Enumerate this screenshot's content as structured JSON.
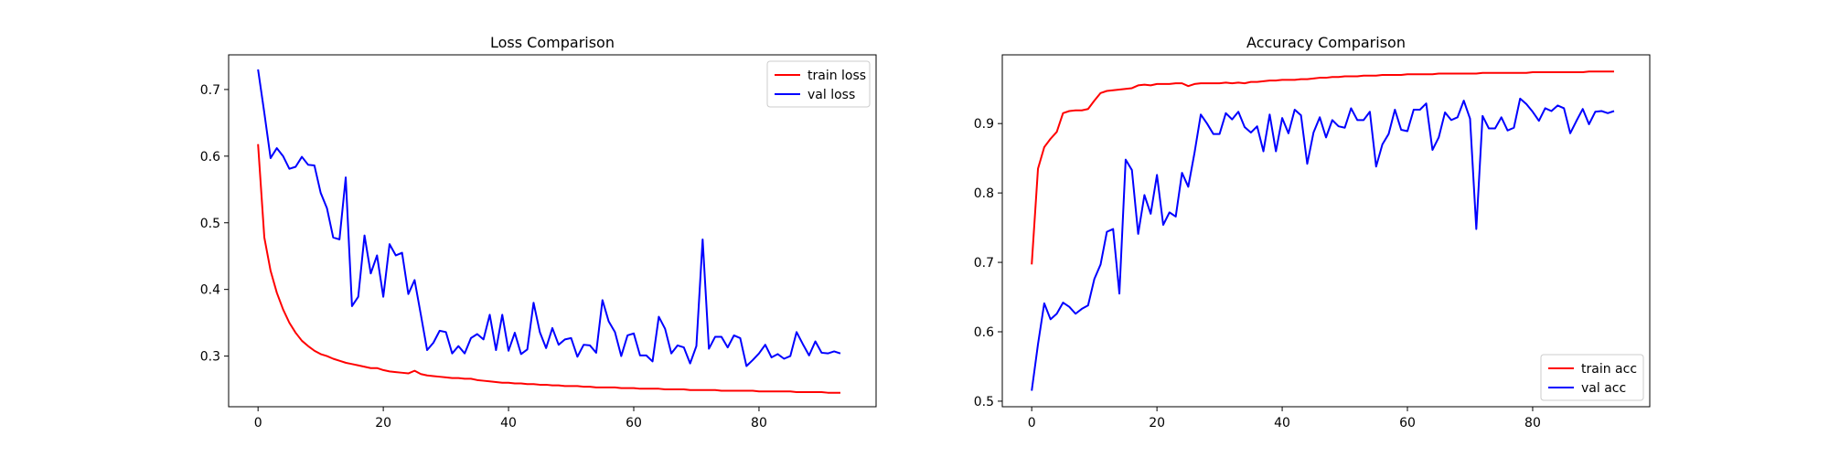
{
  "chart_data": [
    {
      "type": "line",
      "title": "Loss Comparison",
      "xlabel": "",
      "ylabel": "",
      "xlim": [
        -4.7,
        98.7
      ],
      "ylim": [
        0.224,
        0.752
      ],
      "xticks": [
        0,
        20,
        40,
        60,
        80
      ],
      "yticks": [
        0.3,
        0.4,
        0.5,
        0.6,
        0.7
      ],
      "ytick_labels": [
        "0.3",
        "0.4",
        "0.5",
        "0.6",
        "0.7"
      ],
      "legend": "top-right",
      "grid": false,
      "series": [
        {
          "name": "train loss",
          "color": "#ff0000",
          "values": [
            0.618,
            0.478,
            0.428,
            0.395,
            0.37,
            0.35,
            0.335,
            0.323,
            0.315,
            0.308,
            0.303,
            0.3,
            0.296,
            0.293,
            0.29,
            0.288,
            0.286,
            0.284,
            0.282,
            0.282,
            0.279,
            0.277,
            0.276,
            0.275,
            0.274,
            0.278,
            0.273,
            0.271,
            0.27,
            0.269,
            0.268,
            0.267,
            0.267,
            0.266,
            0.266,
            0.264,
            0.263,
            0.262,
            0.261,
            0.26,
            0.26,
            0.259,
            0.259,
            0.258,
            0.258,
            0.257,
            0.257,
            0.256,
            0.256,
            0.255,
            0.255,
            0.255,
            0.254,
            0.254,
            0.253,
            0.253,
            0.253,
            0.253,
            0.252,
            0.252,
            0.252,
            0.251,
            0.251,
            0.251,
            0.251,
            0.25,
            0.25,
            0.25,
            0.25,
            0.249,
            0.249,
            0.249,
            0.249,
            0.249,
            0.248,
            0.248,
            0.248,
            0.248,
            0.248,
            0.248,
            0.247,
            0.247,
            0.247,
            0.247,
            0.247,
            0.247,
            0.246,
            0.246,
            0.246,
            0.246,
            0.246,
            0.245,
            0.245,
            0.245
          ]
        },
        {
          "name": "val loss",
          "color": "#0000ff",
          "values": [
            0.73,
            0.665,
            0.597,
            0.612,
            0.6,
            0.581,
            0.584,
            0.599,
            0.587,
            0.586,
            0.545,
            0.522,
            0.478,
            0.475,
            0.568,
            0.375,
            0.389,
            0.481,
            0.424,
            0.451,
            0.389,
            0.468,
            0.451,
            0.455,
            0.393,
            0.414,
            0.362,
            0.309,
            0.32,
            0.338,
            0.336,
            0.304,
            0.315,
            0.304,
            0.327,
            0.333,
            0.325,
            0.362,
            0.309,
            0.362,
            0.308,
            0.335,
            0.303,
            0.31,
            0.38,
            0.336,
            0.312,
            0.342,
            0.317,
            0.325,
            0.327,
            0.299,
            0.317,
            0.316,
            0.305,
            0.384,
            0.352,
            0.336,
            0.3,
            0.331,
            0.334,
            0.301,
            0.301,
            0.292,
            0.359,
            0.341,
            0.304,
            0.316,
            0.313,
            0.289,
            0.315,
            0.475,
            0.311,
            0.329,
            0.329,
            0.313,
            0.331,
            0.327,
            0.285,
            0.294,
            0.304,
            0.317,
            0.298,
            0.303,
            0.296,
            0.3,
            0.336,
            0.318,
            0.301,
            0.322,
            0.305,
            0.304,
            0.307,
            0.304
          ]
        }
      ]
    },
    {
      "type": "line",
      "title": "Accuracy Comparison",
      "xlabel": "",
      "ylabel": "",
      "xlim": [
        -4.7,
        98.7
      ],
      "ylim": [
        0.492,
        0.999
      ],
      "xticks": [
        0,
        20,
        40,
        60,
        80
      ],
      "yticks": [
        0.5,
        0.6,
        0.7,
        0.8,
        0.9
      ],
      "ytick_labels": [
        "0.5",
        "0.6",
        "0.7",
        "0.8",
        "0.9"
      ],
      "legend": "bottom-right",
      "grid": false,
      "series": [
        {
          "name": "train acc",
          "color": "#ff0000",
          "values": [
            0.697,
            0.835,
            0.866,
            0.878,
            0.888,
            0.915,
            0.918,
            0.919,
            0.919,
            0.921,
            0.933,
            0.944,
            0.947,
            0.948,
            0.949,
            0.95,
            0.951,
            0.955,
            0.956,
            0.955,
            0.957,
            0.957,
            0.957,
            0.958,
            0.958,
            0.954,
            0.957,
            0.958,
            0.958,
            0.958,
            0.958,
            0.959,
            0.958,
            0.959,
            0.958,
            0.96,
            0.96,
            0.961,
            0.962,
            0.962,
            0.963,
            0.963,
            0.963,
            0.964,
            0.964,
            0.965,
            0.966,
            0.966,
            0.967,
            0.967,
            0.968,
            0.968,
            0.968,
            0.969,
            0.969,
            0.969,
            0.97,
            0.97,
            0.97,
            0.97,
            0.971,
            0.971,
            0.971,
            0.971,
            0.971,
            0.972,
            0.972,
            0.972,
            0.972,
            0.972,
            0.972,
            0.972,
            0.973,
            0.973,
            0.973,
            0.973,
            0.973,
            0.973,
            0.973,
            0.973,
            0.974,
            0.974,
            0.974,
            0.974,
            0.974,
            0.974,
            0.974,
            0.974,
            0.974,
            0.975,
            0.975,
            0.975,
            0.975,
            0.975
          ]
        },
        {
          "name": "val acc",
          "color": "#0000ff",
          "values": [
            0.515,
            0.582,
            0.641,
            0.618,
            0.626,
            0.642,
            0.636,
            0.626,
            0.633,
            0.638,
            0.676,
            0.697,
            0.744,
            0.748,
            0.655,
            0.848,
            0.833,
            0.741,
            0.797,
            0.77,
            0.826,
            0.754,
            0.772,
            0.766,
            0.829,
            0.809,
            0.858,
            0.913,
            0.9,
            0.885,
            0.885,
            0.915,
            0.906,
            0.917,
            0.895,
            0.887,
            0.896,
            0.86,
            0.913,
            0.86,
            0.908,
            0.886,
            0.92,
            0.912,
            0.842,
            0.887,
            0.909,
            0.88,
            0.905,
            0.896,
            0.894,
            0.922,
            0.905,
            0.905,
            0.917,
            0.838,
            0.87,
            0.885,
            0.92,
            0.891,
            0.889,
            0.92,
            0.92,
            0.929,
            0.862,
            0.88,
            0.916,
            0.905,
            0.909,
            0.933,
            0.907,
            0.748,
            0.911,
            0.893,
            0.893,
            0.909,
            0.89,
            0.894,
            0.936,
            0.928,
            0.917,
            0.904,
            0.922,
            0.918,
            0.926,
            0.922,
            0.886,
            0.904,
            0.921,
            0.899,
            0.917,
            0.918,
            0.915,
            0.918
          ]
        }
      ]
    }
  ]
}
